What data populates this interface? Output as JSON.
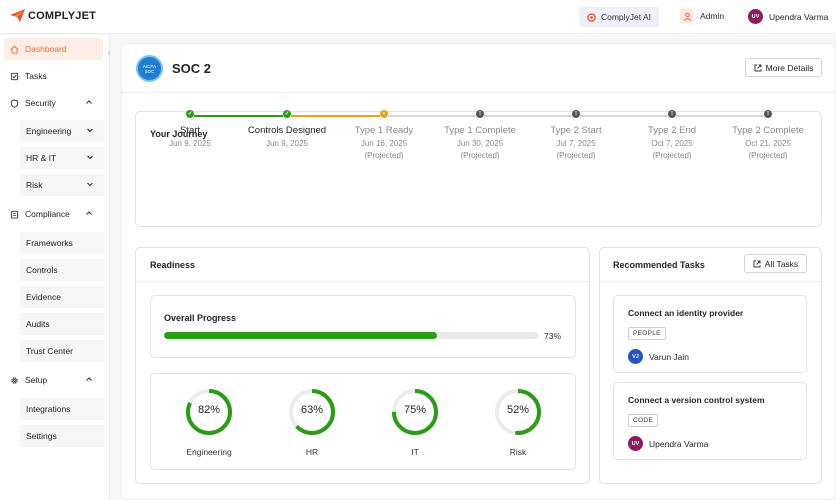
{
  "brand": {
    "name": "COMPLYJET",
    "color": "#e8582b"
  },
  "topbar": {
    "ai_label": "ComplyJet AI",
    "admin_label": "Admin",
    "user_initials": "UV",
    "user_name": "Upendra Varma"
  },
  "sidebar": {
    "dashboard": "Dashboard",
    "tasks": "Tasks",
    "security": "Security",
    "security_items": [
      "Engineering",
      "HR & IT",
      "Risk"
    ],
    "compliance": "Compliance",
    "compliance_items": [
      "Frameworks",
      "Controls",
      "Evidence",
      "Audits",
      "Trust Center"
    ],
    "setup": "Setup",
    "setup_items": [
      "Integrations",
      "Settings"
    ]
  },
  "header": {
    "badge_line1": "AICPA",
    "badge_line2": "SOC",
    "title": "SOC 2",
    "more_details": "More Details"
  },
  "journey": {
    "title": "Your Journey",
    "steps": [
      {
        "label": "Start",
        "date": "Jun 9, 2025",
        "projected": "",
        "status": "done"
      },
      {
        "label": "Controls Designed",
        "date": "Jun 9, 2025",
        "projected": "",
        "status": "done"
      },
      {
        "label": "Type 1 Ready",
        "date": "Jun 16, 2025",
        "projected": "(Projected)",
        "status": "current"
      },
      {
        "label": "Type 1 Complete",
        "date": "Jun 30, 2025",
        "projected": "(Projected)",
        "status": "pending"
      },
      {
        "label": "Type 2 Start",
        "date": "Jul 7, 2025",
        "projected": "(Projected)",
        "status": "pending"
      },
      {
        "label": "Type 2 End",
        "date": "Oct 7, 2025",
        "projected": "(Projected)",
        "status": "pending"
      },
      {
        "label": "Type 2 Complete",
        "date": "Oct 21, 2025",
        "projected": "(Projected)",
        "status": "pending"
      }
    ]
  },
  "readiness": {
    "title": "Readiness",
    "overall_label": "Overall Progress",
    "overall_percent": 73,
    "overall_text": "73%",
    "categories": [
      {
        "name": "Engineering",
        "percent": 82,
        "text": "82%"
      },
      {
        "name": "HR",
        "percent": 63,
        "text": "63%"
      },
      {
        "name": "IT",
        "percent": 75,
        "text": "75%"
      },
      {
        "name": "Risk",
        "percent": 52,
        "text": "52%"
      }
    ]
  },
  "tasks": {
    "title": "Recommended Tasks",
    "all_tasks": "All Tasks",
    "items": [
      {
        "title": "Connect an identity provider",
        "tag": "PEOPLE",
        "initials": "VJ",
        "assignee": "Varun Jain"
      },
      {
        "title": "Connect a version control system",
        "tag": "CODE",
        "initials": "UV",
        "assignee": "Upendra Varma"
      }
    ]
  },
  "colors": {
    "green": "#2d9a19",
    "orange": "#e8a020",
    "gray": "#555555",
    "accent": "#e86a3a"
  }
}
